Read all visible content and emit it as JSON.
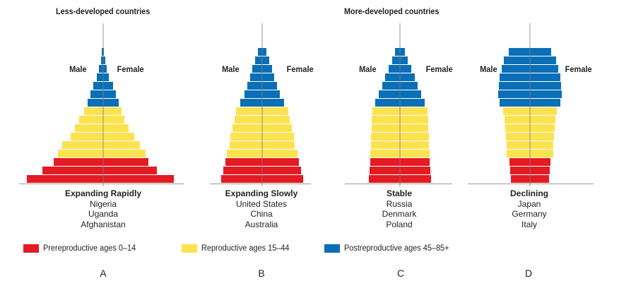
{
  "chart_data": {
    "type": "bar",
    "description_groups": [
      {
        "key": "less",
        "title": "Less-developed countries"
      },
      {
        "key": "more",
        "title": "More-developed countries"
      }
    ],
    "age_categories": [
      "prereproductive",
      "reproductive",
      "postreproductive"
    ],
    "legend": [
      {
        "category": "prereproductive",
        "label": "Prereproductive ages 0–14",
        "color": "#e31b23"
      },
      {
        "category": "reproductive",
        "label": "Reproductive ages 15–44",
        "color": "#fde24f"
      },
      {
        "category": "postreproductive",
        "label": "Postreproductive ages 45–85+",
        "color": "#0a6fb7"
      }
    ],
    "pyramids": [
      {
        "letter": "A",
        "group": "less",
        "title": "Expanding Rapidly",
        "examples": [
          "Nigeria",
          "Uganda",
          "Afghanistan"
        ],
        "male_label": "Male",
        "female_label": "Female",
        "bars_bottom_to_top": [
          {
            "category": "prereproductive",
            "male": 108,
            "female": 100
          },
          {
            "category": "prereproductive",
            "male": 86,
            "female": 76
          },
          {
            "category": "prereproductive",
            "male": 70,
            "female": 64
          },
          {
            "category": "reproductive",
            "male": 64,
            "female": 60
          },
          {
            "category": "reproductive",
            "male": 58,
            "female": 52
          },
          {
            "category": "reproductive",
            "male": 46,
            "female": 44
          },
          {
            "category": "reproductive",
            "male": 40,
            "female": 36
          },
          {
            "category": "reproductive",
            "male": 34,
            "female": 30
          },
          {
            "category": "reproductive",
            "male": 27,
            "female": 26
          },
          {
            "category": "postreproductive",
            "male": 22,
            "female": 22
          },
          {
            "category": "postreproductive",
            "male": 18,
            "female": 18
          },
          {
            "category": "postreproductive",
            "male": 14,
            "female": 14
          },
          {
            "category": "postreproductive",
            "male": 9,
            "female": 8
          },
          {
            "category": "postreproductive",
            "male": 6,
            "female": 5
          },
          {
            "category": "postreproductive",
            "male": 3,
            "female": 3
          },
          {
            "category": "postreproductive",
            "male": 2,
            "female": 1
          }
        ]
      },
      {
        "letter": "B",
        "group": "less",
        "title": "Expanding Slowly",
        "examples": [
          "United States",
          "China",
          "Australia"
        ],
        "male_label": "Male",
        "female_label": "Female",
        "bars_bottom_to_top": [
          {
            "category": "prereproductive",
            "male": 58,
            "female": 58
          },
          {
            "category": "prereproductive",
            "male": 55,
            "female": 55
          },
          {
            "category": "prereproductive",
            "male": 52,
            "female": 52
          },
          {
            "category": "reproductive",
            "male": 50,
            "female": 50
          },
          {
            "category": "reproductive",
            "male": 46,
            "female": 46
          },
          {
            "category": "reproductive",
            "male": 45,
            "female": 45
          },
          {
            "category": "reproductive",
            "male": 42,
            "female": 42
          },
          {
            "category": "reproductive",
            "male": 39,
            "female": 39
          },
          {
            "category": "reproductive",
            "male": 37,
            "female": 37
          },
          {
            "category": "postreproductive",
            "male": 31,
            "female": 31
          },
          {
            "category": "postreproductive",
            "male": 25,
            "female": 25
          },
          {
            "category": "postreproductive",
            "male": 21,
            "female": 21
          },
          {
            "category": "postreproductive",
            "male": 17,
            "female": 17
          },
          {
            "category": "postreproductive",
            "male": 14,
            "female": 14
          },
          {
            "category": "postreproductive",
            "male": 10,
            "female": 10
          },
          {
            "category": "postreproductive",
            "male": 6,
            "female": 6
          }
        ]
      },
      {
        "letter": "C",
        "group": "more",
        "title": "Stable",
        "examples": [
          "Russia",
          "Denmark",
          "Poland"
        ],
        "male_label": "Male",
        "female_label": "Female",
        "bars_bottom_to_top": [
          {
            "category": "prereproductive",
            "male": 44,
            "female": 44
          },
          {
            "category": "prereproductive",
            "male": 43,
            "female": 43
          },
          {
            "category": "prereproductive",
            "male": 42,
            "female": 42
          },
          {
            "category": "reproductive",
            "male": 42,
            "female": 42
          },
          {
            "category": "reproductive",
            "male": 41,
            "female": 41
          },
          {
            "category": "reproductive",
            "male": 41,
            "female": 41
          },
          {
            "category": "reproductive",
            "male": 40,
            "female": 40
          },
          {
            "category": "reproductive",
            "male": 40,
            "female": 40
          },
          {
            "category": "reproductive",
            "male": 39,
            "female": 39
          },
          {
            "category": "postreproductive",
            "male": 35,
            "female": 35
          },
          {
            "category": "postreproductive",
            "male": 30,
            "female": 30
          },
          {
            "category": "postreproductive",
            "male": 25,
            "female": 25
          },
          {
            "category": "postreproductive",
            "male": 21,
            "female": 21
          },
          {
            "category": "postreproductive",
            "male": 16,
            "female": 16
          },
          {
            "category": "postreproductive",
            "male": 11,
            "female": 11
          },
          {
            "category": "postreproductive",
            "male": 7,
            "female": 7
          }
        ]
      },
      {
        "letter": "D",
        "group": "more",
        "title": "Declining",
        "examples": [
          "Japan",
          "Germany",
          "Italy"
        ],
        "male_label": "Male",
        "female_label": "Female",
        "bars_bottom_to_top": [
          {
            "category": "prereproductive",
            "male": 27,
            "female": 27
          },
          {
            "category": "prereproductive",
            "male": 28,
            "female": 28
          },
          {
            "category": "prereproductive",
            "male": 29,
            "female": 29
          },
          {
            "category": "reproductive",
            "male": 33,
            "female": 33
          },
          {
            "category": "reproductive",
            "male": 33,
            "female": 33
          },
          {
            "category": "reproductive",
            "male": 34,
            "female": 34
          },
          {
            "category": "reproductive",
            "male": 35,
            "female": 35
          },
          {
            "category": "reproductive",
            "male": 36,
            "female": 36
          },
          {
            "category": "reproductive",
            "male": 38,
            "female": 38
          },
          {
            "category": "postreproductive",
            "male": 43,
            "female": 43
          },
          {
            "category": "postreproductive",
            "male": 45,
            "female": 45
          },
          {
            "category": "postreproductive",
            "male": 44,
            "female": 44
          },
          {
            "category": "postreproductive",
            "male": 43,
            "female": 43
          },
          {
            "category": "postreproductive",
            "male": 40,
            "female": 40
          },
          {
            "category": "postreproductive",
            "male": 37,
            "female": 37
          },
          {
            "category": "postreproductive",
            "male": 30,
            "female": 30
          }
        ]
      }
    ]
  }
}
